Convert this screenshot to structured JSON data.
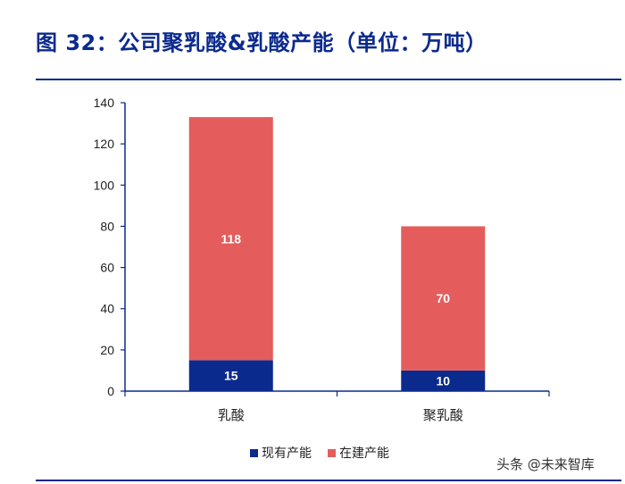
{
  "title": "图 32：公司聚乳酸&乳酸产能（单位：万吨）",
  "watermark": "头条 @未来智库",
  "colors": {
    "title": "#0b2a8e",
    "existing": "#0b2a8e",
    "under_construction": "#e45c5c",
    "axis": "#0b2a8e"
  },
  "chart_data": {
    "type": "bar",
    "stacked": true,
    "categories": [
      "乳酸",
      "聚乳酸"
    ],
    "series": [
      {
        "name": "现有产能",
        "values": [
          15,
          10
        ],
        "color": "#0b2a8e",
        "label_color": "#ffffff"
      },
      {
        "name": "在建产能",
        "values": [
          118,
          70
        ],
        "color": "#e45c5c",
        "label_color": "#ffffff"
      }
    ],
    "ylim": [
      0,
      140
    ],
    "yticks": [
      0,
      20,
      40,
      60,
      80,
      100,
      120,
      140
    ],
    "grid": false,
    "legend_position": "bottom"
  }
}
